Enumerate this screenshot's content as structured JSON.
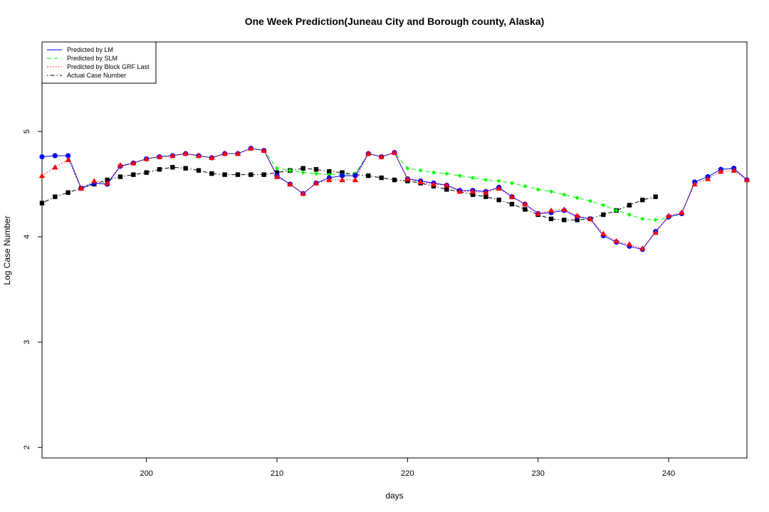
{
  "chart_data": {
    "type": "line",
    "title": "One Week Prediction(Juneau City and Borough county, Alaska)",
    "xlabel": "days",
    "ylabel": "Log Case Number",
    "xlim": [
      192,
      246
    ],
    "ylim": [
      1.9,
      5.85
    ],
    "xticks": [
      200,
      210,
      220,
      230,
      240
    ],
    "yticks": [
      2,
      3,
      4,
      5
    ],
    "grid": false,
    "legend_position": "top-left",
    "series": [
      {
        "name": "Predicted by LM",
        "color": "#0000ff",
        "line_style": "solid",
        "marker": "circle",
        "x": [
          192,
          193,
          194,
          195,
          196,
          197,
          198,
          199,
          200,
          201,
          202,
          203,
          204,
          205,
          206,
          207,
          208,
          209,
          210,
          211,
          212,
          213,
          214,
          215,
          216,
          217,
          218,
          219,
          220,
          221,
          222,
          223,
          224,
          225,
          226,
          227,
          228,
          229,
          230,
          231,
          232,
          233,
          234,
          235,
          236,
          237,
          238,
          239,
          240,
          241,
          242,
          243,
          244,
          245,
          246
        ],
        "y": [
          4.76,
          4.77,
          4.77,
          4.46,
          4.51,
          4.5,
          4.67,
          4.7,
          4.74,
          4.76,
          4.77,
          4.79,
          4.77,
          4.75,
          4.79,
          4.79,
          4.84,
          4.82,
          4.58,
          4.5,
          4.41,
          4.51,
          4.56,
          4.58,
          4.58,
          4.79,
          4.76,
          4.8,
          4.55,
          4.53,
          4.51,
          4.49,
          4.44,
          4.44,
          4.43,
          4.47,
          4.38,
          4.31,
          4.22,
          4.23,
          4.25,
          4.19,
          4.17,
          4.01,
          3.95,
          3.91,
          3.88,
          4.05,
          4.19,
          4.22,
          4.52,
          4.57,
          4.64,
          4.65,
          4.54
        ]
      },
      {
        "name": "Predicted by SLM",
        "color": "#00ff00",
        "line_style": "dashed",
        "marker": "diamond",
        "x": [
          192,
          193,
          194,
          195,
          196,
          197,
          198,
          199,
          200,
          201,
          202,
          203,
          204,
          205,
          206,
          207,
          208,
          209,
          210,
          211,
          212,
          213,
          214,
          215,
          216,
          217,
          218,
          219,
          220,
          221,
          222,
          223,
          224,
          225,
          226,
          227,
          228,
          229,
          230,
          231,
          232,
          233,
          234,
          235,
          236,
          237,
          238,
          239,
          240,
          241,
          242,
          243,
          244,
          245,
          246
        ],
        "y": [
          4.76,
          4.77,
          4.77,
          4.46,
          4.51,
          4.5,
          4.67,
          4.7,
          4.74,
          4.76,
          4.77,
          4.79,
          4.77,
          4.75,
          4.79,
          4.79,
          4.84,
          4.82,
          4.65,
          4.63,
          4.61,
          4.6,
          4.59,
          4.59,
          4.6,
          4.79,
          4.76,
          4.8,
          4.65,
          4.63,
          4.61,
          4.6,
          4.58,
          4.56,
          4.54,
          4.53,
          4.51,
          4.48,
          4.45,
          4.43,
          4.4,
          4.37,
          4.34,
          4.3,
          4.25,
          4.21,
          4.17,
          4.16,
          4.18,
          4.22,
          4.52,
          4.57,
          4.64,
          4.65,
          4.54
        ]
      },
      {
        "name": "Predicted by Block GRF Last",
        "color": "#ff0000",
        "line_style": "dotted",
        "marker": "triangle",
        "x": [
          192,
          193,
          194,
          195,
          196,
          197,
          198,
          199,
          200,
          201,
          202,
          203,
          204,
          205,
          206,
          207,
          208,
          209,
          210,
          211,
          212,
          213,
          214,
          215,
          216,
          217,
          218,
          219,
          220,
          221,
          222,
          223,
          224,
          225,
          226,
          227,
          228,
          229,
          230,
          231,
          232,
          233,
          234,
          235,
          236,
          237,
          238,
          239,
          240,
          241,
          242,
          243,
          244,
          245,
          246
        ],
        "y": [
          4.58,
          4.66,
          4.73,
          4.46,
          4.53,
          4.51,
          4.68,
          4.7,
          4.74,
          4.76,
          4.77,
          4.79,
          4.77,
          4.75,
          4.79,
          4.79,
          4.84,
          4.82,
          4.57,
          4.5,
          4.41,
          4.51,
          4.54,
          4.54,
          4.54,
          4.79,
          4.76,
          4.8,
          4.55,
          4.52,
          4.5,
          4.49,
          4.43,
          4.43,
          4.42,
          4.46,
          4.38,
          4.31,
          4.22,
          4.25,
          4.26,
          4.2,
          4.17,
          4.03,
          3.96,
          3.93,
          3.89,
          4.04,
          4.2,
          4.23,
          4.5,
          4.55,
          4.62,
          4.63,
          4.54
        ]
      },
      {
        "name": "Actual Case Number",
        "color": "#000000",
        "line_style": "dotdash",
        "marker": "square",
        "x": [
          192,
          193,
          194,
          195,
          196,
          197,
          198,
          199,
          200,
          201,
          202,
          203,
          204,
          205,
          206,
          207,
          208,
          209,
          210,
          211,
          212,
          213,
          214,
          215,
          216,
          217,
          218,
          219,
          220,
          221,
          222,
          223,
          224,
          225,
          226,
          227,
          228,
          229,
          230,
          231,
          232,
          233,
          234,
          235,
          236,
          237,
          238,
          239
        ],
        "y": [
          4.32,
          4.38,
          4.42,
          4.46,
          4.5,
          4.54,
          4.57,
          4.59,
          4.61,
          4.64,
          4.66,
          4.65,
          4.63,
          4.6,
          4.59,
          4.59,
          4.59,
          4.59,
          4.61,
          4.63,
          4.65,
          4.64,
          4.62,
          4.61,
          4.59,
          4.58,
          4.56,
          4.54,
          4.53,
          4.51,
          4.48,
          4.45,
          4.43,
          4.4,
          4.38,
          4.35,
          4.31,
          4.26,
          4.21,
          4.17,
          4.16,
          4.16,
          4.17,
          4.21,
          4.25,
          4.3,
          4.35,
          4.38
        ]
      }
    ]
  }
}
